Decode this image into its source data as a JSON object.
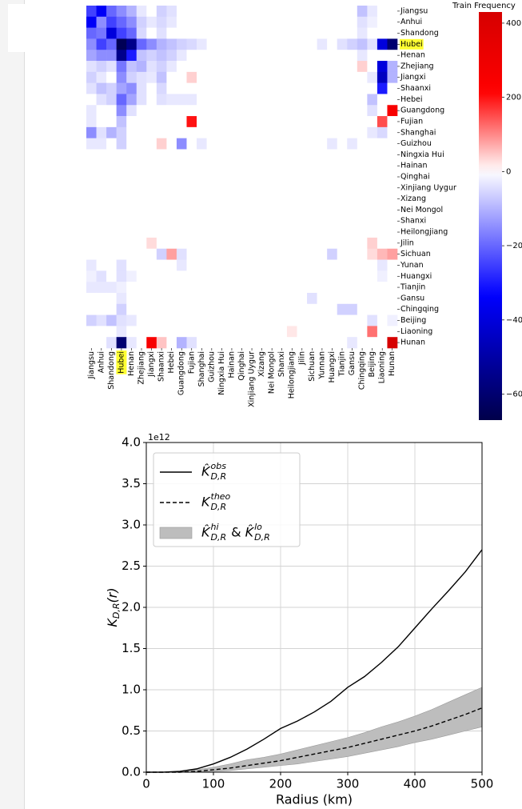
{
  "chart_data": [
    {
      "type": "heatmap",
      "row_labels": [
        "Jiangsu",
        "Anhui",
        "Shandong",
        "Hubei",
        "Henan",
        "Zhejiang",
        "Jiangxi",
        "Shaanxi",
        "Hebei",
        "Guangdong",
        "Fujian",
        "Shanghai",
        "Guizhou",
        "Ningxia Hui",
        "Hainan",
        "Qinghai",
        "Xinjiang Uygur",
        "Xizang",
        "Nei Mongol",
        "Shanxi",
        "Heilongjiang",
        "Jilin",
        "Sichuan",
        "Yunan",
        "Huangxi",
        "Tianjin",
        "Gansu",
        "Chingqing",
        "Beijing",
        "Liaoning",
        "Hunan"
      ],
      "column_labels": [
        "Jiangsu",
        "Anhui",
        "Shandong",
        "Hubei",
        "Henan",
        "Zhejiang",
        "Jiangxi",
        "Shaanxi",
        "Hebei",
        "Guangdong",
        "Fujian",
        "Shanghai",
        "Guizhou",
        "Ningxia Hui",
        "Hainan",
        "Qinghai",
        "Xinjiang Uygur",
        "Xizang",
        "Nei Mongol",
        "Shanxi",
        "Heilongjiang",
        "Jilin",
        "Sichuan",
        "Yunnan",
        "Huangxi",
        "Tianjin",
        "Gansu",
        "Chingqing",
        "Beijing",
        "Liaoning",
        "Hunan"
      ],
      "values": [
        [
          -250,
          -350,
          -200,
          -150,
          -100,
          -30,
          0,
          -60,
          -40,
          0,
          0,
          0,
          0,
          0,
          0,
          0,
          0,
          0,
          0,
          0,
          0,
          0,
          0,
          0,
          0,
          0,
          0,
          -80,
          -30,
          0,
          0
        ],
        [
          -350,
          -150,
          -250,
          -200,
          -150,
          -60,
          -30,
          -50,
          -30,
          0,
          0,
          0,
          0,
          0,
          0,
          0,
          0,
          0,
          0,
          0,
          0,
          0,
          0,
          0,
          0,
          0,
          0,
          -40,
          -20,
          0,
          0
        ],
        [
          -200,
          -180,
          -400,
          -250,
          -200,
          -50,
          0,
          -40,
          0,
          0,
          0,
          0,
          0,
          0,
          0,
          0,
          0,
          0,
          0,
          0,
          0,
          0,
          0,
          0,
          0,
          0,
          0,
          -30,
          0,
          0,
          0
        ],
        [
          -150,
          -250,
          -200,
          -650,
          -550,
          -200,
          -150,
          -100,
          -80,
          -60,
          -50,
          -30,
          0,
          0,
          0,
          0,
          0,
          0,
          0,
          0,
          0,
          0,
          0,
          -30,
          0,
          -40,
          -60,
          -80,
          -40,
          -400,
          -600
        ],
        [
          -120,
          -150,
          -150,
          -550,
          -300,
          -80,
          -60,
          -80,
          -60,
          -30,
          0,
          0,
          0,
          0,
          0,
          0,
          0,
          0,
          0,
          0,
          0,
          0,
          0,
          0,
          0,
          0,
          0,
          -30,
          0,
          0,
          0
        ],
        [
          -40,
          -60,
          -40,
          -180,
          -80,
          -100,
          -40,
          -60,
          -30,
          0,
          0,
          0,
          0,
          0,
          0,
          0,
          0,
          0,
          0,
          0,
          0,
          0,
          0,
          0,
          0,
          0,
          0,
          40,
          0,
          -400,
          -100
        ],
        [
          -60,
          -30,
          0,
          -150,
          -60,
          -40,
          -30,
          -80,
          0,
          0,
          40,
          0,
          0,
          0,
          0,
          0,
          0,
          0,
          0,
          0,
          0,
          0,
          0,
          0,
          0,
          0,
          0,
          0,
          -30,
          -450,
          -100
        ],
        [
          -40,
          -80,
          -60,
          -120,
          -150,
          -40,
          0,
          -50,
          0,
          0,
          0,
          0,
          0,
          0,
          0,
          0,
          0,
          0,
          0,
          0,
          0,
          0,
          0,
          0,
          0,
          0,
          0,
          0,
          0,
          -300,
          0
        ],
        [
          0,
          -40,
          -60,
          -200,
          -120,
          -40,
          0,
          -40,
          -30,
          -30,
          -30,
          0,
          0,
          0,
          0,
          0,
          0,
          0,
          0,
          0,
          0,
          0,
          0,
          0,
          0,
          0,
          0,
          0,
          -80,
          0,
          0
        ],
        [
          -30,
          0,
          0,
          -150,
          -40,
          0,
          0,
          0,
          0,
          0,
          0,
          0,
          0,
          0,
          0,
          0,
          0,
          0,
          0,
          0,
          0,
          0,
          0,
          0,
          0,
          0,
          0,
          0,
          -40,
          0,
          250
        ],
        [
          -30,
          0,
          0,
          -80,
          0,
          0,
          0,
          0,
          0,
          0,
          200,
          0,
          0,
          0,
          0,
          0,
          0,
          0,
          0,
          0,
          0,
          0,
          0,
          0,
          0,
          0,
          0,
          0,
          0,
          150,
          0
        ],
        [
          -150,
          -40,
          -100,
          -60,
          0,
          0,
          0,
          0,
          0,
          0,
          0,
          0,
          0,
          0,
          0,
          0,
          0,
          0,
          0,
          0,
          0,
          0,
          0,
          0,
          0,
          0,
          0,
          0,
          -30,
          -50,
          0
        ],
        [
          -30,
          -30,
          0,
          -60,
          0,
          0,
          0,
          40,
          0,
          -150,
          0,
          -30,
          0,
          0,
          0,
          0,
          0,
          0,
          0,
          0,
          0,
          0,
          0,
          0,
          -30,
          0,
          -30,
          0,
          0,
          0,
          0
        ],
        [
          0,
          0,
          0,
          0,
          0,
          0,
          0,
          0,
          0,
          0,
          0,
          0,
          0,
          0,
          0,
          0,
          0,
          0,
          0,
          0,
          0,
          0,
          0,
          0,
          0,
          0,
          0,
          0,
          0,
          0,
          0
        ],
        [
          0,
          0,
          0,
          0,
          0,
          0,
          0,
          0,
          0,
          0,
          0,
          0,
          0,
          0,
          0,
          0,
          0,
          0,
          0,
          0,
          0,
          0,
          0,
          0,
          0,
          0,
          0,
          0,
          0,
          0,
          0
        ],
        [
          0,
          0,
          0,
          0,
          0,
          0,
          0,
          0,
          0,
          0,
          0,
          0,
          0,
          0,
          0,
          0,
          0,
          0,
          0,
          0,
          0,
          0,
          0,
          0,
          0,
          0,
          0,
          0,
          0,
          0,
          0
        ],
        [
          0,
          0,
          0,
          0,
          0,
          0,
          0,
          0,
          0,
          0,
          0,
          0,
          0,
          0,
          0,
          0,
          0,
          0,
          0,
          0,
          0,
          0,
          0,
          0,
          0,
          0,
          0,
          0,
          0,
          0,
          0
        ],
        [
          0,
          0,
          0,
          0,
          0,
          0,
          0,
          0,
          0,
          0,
          0,
          0,
          0,
          0,
          0,
          0,
          0,
          0,
          0,
          0,
          0,
          0,
          0,
          0,
          0,
          0,
          0,
          0,
          0,
          0,
          0
        ],
        [
          0,
          0,
          0,
          0,
          0,
          0,
          0,
          0,
          0,
          0,
          0,
          0,
          0,
          0,
          0,
          0,
          0,
          0,
          0,
          0,
          0,
          0,
          0,
          0,
          0,
          0,
          0,
          0,
          0,
          0,
          0
        ],
        [
          0,
          0,
          0,
          0,
          0,
          0,
          0,
          0,
          0,
          0,
          0,
          0,
          0,
          0,
          0,
          0,
          0,
          0,
          0,
          0,
          0,
          0,
          0,
          0,
          0,
          0,
          0,
          0,
          0,
          0,
          0
        ],
        [
          0,
          0,
          0,
          0,
          0,
          0,
          0,
          0,
          0,
          0,
          0,
          0,
          0,
          0,
          0,
          0,
          0,
          0,
          0,
          0,
          0,
          0,
          0,
          0,
          0,
          0,
          0,
          0,
          0,
          0,
          0
        ],
        [
          0,
          0,
          0,
          0,
          0,
          0,
          30,
          0,
          0,
          0,
          0,
          0,
          0,
          0,
          0,
          0,
          0,
          0,
          0,
          0,
          0,
          0,
          0,
          0,
          0,
          0,
          0,
          0,
          40,
          0,
          0
        ],
        [
          0,
          0,
          0,
          0,
          0,
          0,
          0,
          -60,
          80,
          -40,
          0,
          0,
          0,
          0,
          0,
          0,
          0,
          0,
          0,
          0,
          0,
          0,
          0,
          0,
          -60,
          0,
          0,
          0,
          30,
          60,
          80
        ],
        [
          -30,
          0,
          0,
          -40,
          0,
          0,
          0,
          0,
          0,
          -30,
          0,
          0,
          0,
          0,
          0,
          0,
          0,
          0,
          0,
          0,
          0,
          0,
          0,
          0,
          0,
          0,
          0,
          0,
          0,
          -30,
          0
        ],
        [
          -20,
          -40,
          0,
          -40,
          -20,
          0,
          0,
          0,
          0,
          0,
          0,
          0,
          0,
          0,
          0,
          0,
          0,
          0,
          0,
          0,
          0,
          0,
          0,
          0,
          0,
          0,
          0,
          0,
          0,
          -20,
          0
        ],
        [
          -30,
          -30,
          -30,
          -20,
          0,
          0,
          0,
          0,
          0,
          0,
          0,
          0,
          0,
          0,
          0,
          0,
          0,
          0,
          0,
          0,
          0,
          0,
          0,
          0,
          0,
          0,
          0,
          0,
          0,
          0,
          0
        ],
        [
          0,
          0,
          0,
          -30,
          0,
          0,
          0,
          0,
          0,
          0,
          0,
          0,
          0,
          0,
          0,
          0,
          0,
          0,
          0,
          0,
          0,
          0,
          -40,
          0,
          0,
          0,
          0,
          0,
          0,
          0,
          0
        ],
        [
          0,
          0,
          0,
          -60,
          0,
          0,
          0,
          0,
          0,
          0,
          0,
          0,
          0,
          0,
          0,
          0,
          0,
          0,
          0,
          0,
          0,
          0,
          0,
          0,
          0,
          -60,
          -60,
          0,
          0,
          0,
          0
        ],
        [
          -60,
          -40,
          -80,
          -40,
          -30,
          0,
          0,
          0,
          0,
          0,
          0,
          0,
          0,
          0,
          0,
          0,
          0,
          0,
          0,
          0,
          0,
          0,
          0,
          0,
          0,
          0,
          0,
          0,
          -40,
          0,
          -20
        ],
        [
          0,
          0,
          0,
          -30,
          0,
          0,
          0,
          0,
          0,
          0,
          0,
          0,
          0,
          0,
          0,
          0,
          0,
          0,
          0,
          0,
          20,
          0,
          0,
          0,
          0,
          0,
          0,
          0,
          120,
          0,
          0
        ],
        [
          0,
          0,
          -40,
          -600,
          -30,
          0,
          250,
          50,
          0,
          -100,
          -40,
          0,
          0,
          0,
          0,
          0,
          0,
          0,
          0,
          0,
          0,
          0,
          0,
          0,
          0,
          0,
          -30,
          0,
          0,
          0,
          500
        ]
      ],
      "clim": [
        -670,
        430
      ],
      "colorbar_ticks": [
        400,
        200,
        0,
        {
          "value": -200,
          "label": "−200"
        },
        {
          "value": -400,
          "label": "−400"
        },
        {
          "value": -600,
          "label": "−600"
        }
      ],
      "colorbar_label": "Train Frequency",
      "colormap": [
        "#00004a",
        "#0000ff",
        "#ffffff",
        "#ff0000",
        "#d60000"
      ],
      "highlight_row": 3,
      "highlight_column": 3,
      "highlight_color": "#ffff33"
    },
    {
      "type": "line",
      "x": [
        0,
        25,
        50,
        75,
        100,
        125,
        150,
        175,
        200,
        225,
        250,
        275,
        300,
        325,
        350,
        375,
        400,
        425,
        450,
        475,
        500
      ],
      "series": [
        {
          "name_parts": [
            {
              "text": "K̂",
              "sup": "obs",
              "sub": "D,R"
            }
          ],
          "color": "#000000",
          "dash": "solid",
          "values": [
            0,
            0,
            0.01,
            0.04,
            0.1,
            0.18,
            0.28,
            0.4,
            0.53,
            0.62,
            0.73,
            0.86,
            1.03,
            1.16,
            1.33,
            1.52,
            1.75,
            1.98,
            2.2,
            2.43,
            2.7
          ]
        },
        {
          "name_parts": [
            {
              "text": "K",
              "sup": "theo",
              "sub": "D,R"
            }
          ],
          "color": "#000000",
          "dash": "dashed",
          "values": [
            0,
            0,
            0,
            0.01,
            0.03,
            0.05,
            0.08,
            0.11,
            0.14,
            0.18,
            0.22,
            0.26,
            0.3,
            0.35,
            0.4,
            0.45,
            0.5,
            0.56,
            0.63,
            0.7,
            0.78
          ]
        },
        {
          "type": "band",
          "name_parts": [
            {
              "text": "K̂",
              "sup": "hi",
              "sub": "D,R"
            },
            {
              "text": "&",
              "sup": null,
              "sub": null
            },
            {
              "text": "K̂",
              "sup": "lo",
              "sub": "D,R"
            }
          ],
          "color": "#bdbdbd",
          "upper": [
            0,
            0,
            0.01,
            0.03,
            0.06,
            0.1,
            0.15,
            0.18,
            0.22,
            0.27,
            0.32,
            0.37,
            0.42,
            0.48,
            0.55,
            0.61,
            0.68,
            0.76,
            0.85,
            0.94,
            1.03
          ],
          "lower": [
            0,
            0,
            0,
            0,
            0.01,
            0.02,
            0.04,
            0.06,
            0.08,
            0.1,
            0.13,
            0.16,
            0.19,
            0.23,
            0.27,
            0.31,
            0.36,
            0.4,
            0.45,
            0.5,
            0.55
          ]
        }
      ],
      "xlabel": "Radius (km)",
      "ylabel": {
        "text": "K",
        "sub": "D,R",
        "after": "(r)"
      },
      "y_offset_label": "1e12",
      "xlim": [
        0,
        500
      ],
      "ylim": [
        0,
        4
      ],
      "xticks": [
        0,
        100,
        200,
        300,
        400,
        500
      ],
      "yticks": [
        {
          "value": 0,
          "label": "0.0"
        },
        {
          "value": 0.5,
          "label": "0.5"
        },
        {
          "value": 1,
          "label": "1.0"
        },
        {
          "value": 1.5,
          "label": "1.5"
        },
        {
          "value": 2,
          "label": "2.0"
        },
        {
          "value": 2.5,
          "label": "2.5"
        },
        {
          "value": 3,
          "label": "3.0"
        },
        {
          "value": 3.5,
          "label": "3.5"
        },
        {
          "value": 4,
          "label": "4.0"
        }
      ],
      "grid": true,
      "legend": "upper left"
    }
  ]
}
